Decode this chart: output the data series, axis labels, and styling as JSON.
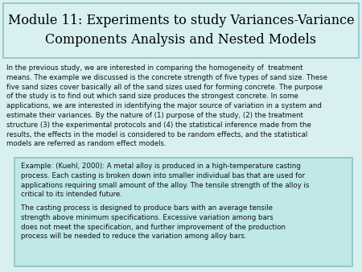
{
  "background_color": "#d8f0f0",
  "title_box_color": "#d8f0f0",
  "title_line1": "Module 11: Experiments to study Variances-Variance",
  "title_line2": "Components Analysis and Nested Models",
  "title_fontsize": 11.5,
  "title_color": "#000000",
  "body_text": "In the previous study, we are interested in comparing the homogeneity of  treatment\nmeans. The example we discussed is the concrete strength of five types of sand size. These\nfive sand sizes cover basically all of the sand sizes used for forming concrete. The purpose\nof the study is to find out which sand size produces the strongest concrete. In some\napplications, we are interested in identifying the major source of variation in a system and\nestimate their variances. By the nature of (1) purpose of the study, (2) the treatment\nstructure (3) the experimental protocols and (4) the statistical inference made from the\nresults, the effects in the model is considered to be random effects, and the statistical\nmodels are referred as random effect models.",
  "body_fontsize": 6.2,
  "body_color": "#111111",
  "example_box_color": "#c0e8e8",
  "example_box_edge": "#90c0c0",
  "example_text1": "Example: (Kuehl, 2000): A metal alloy is produced in a high-temperature casting\nprocess. Each casting is broken down into smaller individual bas that are used for\napplications requiring small amount of the alloy. The tensile strength of the alloy is\ncritical to its intended future.",
  "example_text2": "The casting process is designed to produce bars with an average tensile\nstrength above minimum specifications. Excessive variation among bars\ndoes not meet the specification, and further improvement of the production\nprocess will be needed to reduce the variation among alloy bars.",
  "example_fontsize": 6.2
}
